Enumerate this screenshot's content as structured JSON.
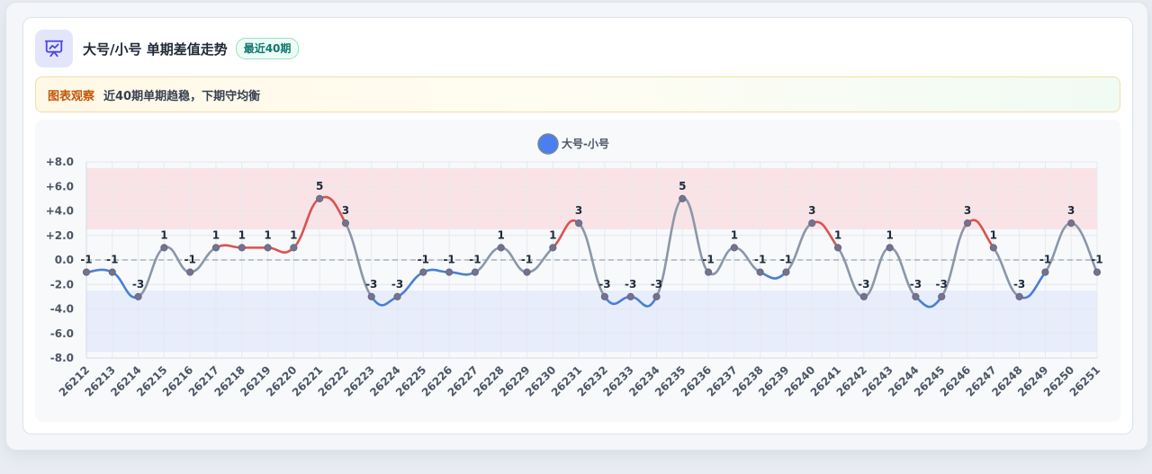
{
  "header": {
    "title": "大号/小号 单期差值走势",
    "badge": "最近40期"
  },
  "note": {
    "label": "图表观察",
    "text": "近40期单期趋稳，下期守均衡"
  },
  "colors": {
    "positive": "#d9534f",
    "negative": "#4a7fd6",
    "neutral": "#8a97a8",
    "legend": "#4a7ff0"
  },
  "chart_data": {
    "type": "line",
    "title": "",
    "xlabel": "",
    "ylabel": "",
    "ylim": [
      -8,
      8
    ],
    "y_ticks": [
      "+8.0",
      "+6.0",
      "+4.0",
      "+2.0",
      "0.0",
      "-2.0",
      "-4.0",
      "-6.0",
      "-8.0"
    ],
    "grid": true,
    "legend_position": "top-center",
    "bands": [
      {
        "from": 2.5,
        "to": 7.5,
        "color": "#f9e3e6"
      },
      {
        "from": -7.5,
        "to": -2.5,
        "color": "#e7edfa"
      }
    ],
    "categories": [
      "26212",
      "26213",
      "26214",
      "26215",
      "26216",
      "26217",
      "26218",
      "26219",
      "26220",
      "26221",
      "26222",
      "26223",
      "26224",
      "26225",
      "26226",
      "26227",
      "26228",
      "26229",
      "26230",
      "26231",
      "26232",
      "26233",
      "26234",
      "26235",
      "26236",
      "26237",
      "26238",
      "26239",
      "26240",
      "26241",
      "26242",
      "26243",
      "26244",
      "26245",
      "26246",
      "26247",
      "26248",
      "26249",
      "26250",
      "26251"
    ],
    "series": [
      {
        "name": "大号-小号",
        "values": [
          -1,
          -1,
          -3,
          1,
          -1,
          1,
          1,
          1,
          1,
          5,
          3,
          -3,
          -3,
          -1,
          -1,
          -1,
          1,
          -1,
          1,
          3,
          -3,
          -3,
          -3,
          5,
          -1,
          1,
          -1,
          -1,
          3,
          1,
          -3,
          1,
          -3,
          -3,
          3,
          1,
          -3,
          -1,
          3,
          -1
        ]
      }
    ]
  }
}
